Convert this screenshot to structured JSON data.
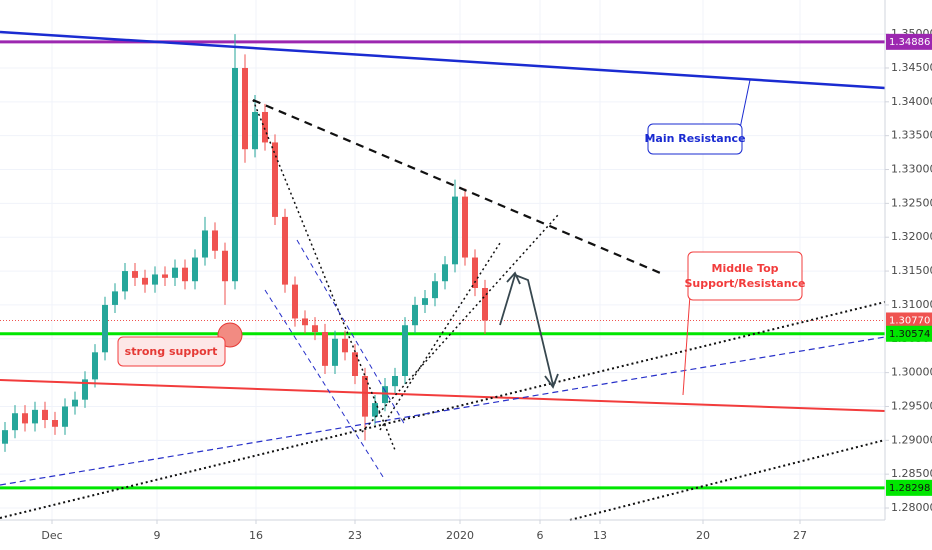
{
  "chart_data": {
    "type": "candlestick",
    "x": [
      0.5,
      1.5,
      2.5,
      3.5,
      4.5,
      5.5,
      6.5,
      7.5,
      8.5,
      9.5,
      10.5,
      11.5,
      12.5,
      13.5,
      14.5,
      15.5,
      16.5,
      17.5,
      18.5,
      19.5,
      20.5,
      21.5,
      22.5,
      23.5,
      24.5,
      25.5,
      26.5,
      27.5,
      28.5,
      29.5,
      30.5,
      31.5,
      32.5,
      33.5,
      34.5,
      35.5,
      36.5,
      37.5,
      38.5,
      39.5,
      40.5,
      41.5,
      42.5,
      43.5,
      44.5,
      45.5,
      46.5,
      47.5,
      48.5
    ],
    "open": [
      1.2895,
      1.2915,
      1.294,
      1.2925,
      1.2945,
      1.293,
      1.292,
      1.295,
      1.296,
      1.299,
      1.303,
      1.31,
      1.312,
      1.315,
      1.314,
      1.313,
      1.3145,
      1.314,
      1.3155,
      1.3135,
      1.317,
      1.321,
      1.318,
      1.3135,
      1.345,
      1.333,
      1.3385,
      1.334,
      1.323,
      1.313,
      1.308,
      1.307,
      1.306,
      1.301,
      1.305,
      1.303,
      1.2995,
      1.2935,
      1.2955,
      1.298,
      1.2995,
      1.307,
      1.31,
      1.311,
      1.3135,
      1.316,
      1.326,
      1.317,
      1.3125
    ],
    "high": [
      1.2927,
      1.2952,
      1.2952,
      1.2957,
      1.2957,
      1.2942,
      1.2962,
      1.2972,
      1.3002,
      1.3042,
      1.3112,
      1.3132,
      1.3162,
      1.3162,
      1.3152,
      1.3157,
      1.3157,
      1.3167,
      1.3167,
      1.3182,
      1.323,
      1.3222,
      1.3192,
      1.35,
      1.347,
      1.341,
      1.3397,
      1.3352,
      1.3242,
      1.3142,
      1.3092,
      1.3082,
      1.3072,
      1.3062,
      1.3062,
      1.3042,
      1.3007,
      1.2967,
      1.2992,
      1.3007,
      1.3082,
      1.3112,
      1.3122,
      1.3147,
      1.3172,
      1.3285,
      1.3272,
      1.3182,
      1.3137
    ],
    "low": [
      1.2883,
      1.2903,
      1.2913,
      1.2913,
      1.2918,
      1.2908,
      1.2908,
      1.2938,
      1.2948,
      1.2978,
      1.3018,
      1.3088,
      1.3108,
      1.3128,
      1.3118,
      1.3118,
      1.3128,
      1.3128,
      1.3123,
      1.3123,
      1.3158,
      1.3168,
      1.31,
      1.3123,
      1.331,
      1.3318,
      1.3328,
      1.3218,
      1.3118,
      1.3068,
      1.3058,
      1.3048,
      1.2998,
      1.2998,
      1.3018,
      1.2983,
      1.29,
      1.2923,
      1.2943,
      1.2968,
      1.2983,
      1.3058,
      1.3088,
      1.3098,
      1.3123,
      1.3148,
      1.3158,
      1.3113,
      1.3057
    ],
    "close": [
      1.2915,
      1.294,
      1.2925,
      1.2945,
      1.293,
      1.292,
      1.295,
      1.296,
      1.299,
      1.303,
      1.31,
      1.312,
      1.315,
      1.314,
      1.313,
      1.3145,
      1.314,
      1.3155,
      1.3135,
      1.317,
      1.321,
      1.318,
      1.3135,
      1.345,
      1.333,
      1.3385,
      1.334,
      1.323,
      1.313,
      1.308,
      1.307,
      1.306,
      1.301,
      1.305,
      1.303,
      1.2995,
      1.2935,
      1.2955,
      1.298,
      1.2995,
      1.307,
      1.31,
      1.311,
      1.3135,
      1.316,
      1.326,
      1.317,
      1.3125,
      1.3077
    ],
    "up_color": "#26a69a",
    "down_color": "#ef5350",
    "xlim": [
      0,
      88.5
    ],
    "xticks": [
      {
        "value": 5.2,
        "label": "Dec"
      },
      15.7,
      25.6,
      35.5,
      {
        "value": 46,
        "label": "2020"
      },
      54,
      60,
      70.3,
      80
    ],
    "xtick_labels": [
      "Dec",
      "9",
      "16",
      "23",
      "2020",
      "6",
      "13",
      "20",
      "27"
    ],
    "ylim": [
      1.27823,
      1.35504
    ],
    "yticks": [
      {
        "value": 1.28,
        "label": "1.28000"
      },
      {
        "value": 1.285,
        "label": "1.28500"
      },
      {
        "value": 1.29,
        "label": "1.29000"
      },
      {
        "value": 1.295,
        "label": "1.29500"
      },
      {
        "value": 1.3,
        "label": "1.30000"
      },
      {
        "value": 1.305,
        "label": "1.30500"
      },
      {
        "value": 1.31,
        "label": "1.31000"
      },
      {
        "value": 1.315,
        "label": "1.31500"
      },
      {
        "value": 1.32,
        "label": "1.32000"
      },
      {
        "value": 1.325,
        "label": "1.32500"
      },
      {
        "value": 1.33,
        "label": "1.33000"
      },
      {
        "value": 1.335,
        "label": "1.33500"
      },
      {
        "value": 1.34,
        "label": "1.34000"
      },
      {
        "value": 1.345,
        "label": "1.34500"
      },
      {
        "value": 1.35,
        "label": "1.35000"
      }
    ],
    "grid": true,
    "price_levels": [
      {
        "value": 1.34886,
        "label": "1.34886",
        "color": "#9c27b0",
        "style": "solid"
      },
      {
        "value": 1.3077,
        "label": "1.30770",
        "color": "#ef5350",
        "style": "dotted"
      },
      {
        "value": 1.30574,
        "label": "1.30574",
        "color": "#00e600",
        "style": "solid"
      },
      {
        "value": 1.28298,
        "label": "1.28298",
        "color": "#00e600",
        "style": "solid"
      }
    ],
    "annotations": [
      "Main Resistance",
      "Middle Top",
      "Support/Resistance",
      "strong support"
    ]
  }
}
